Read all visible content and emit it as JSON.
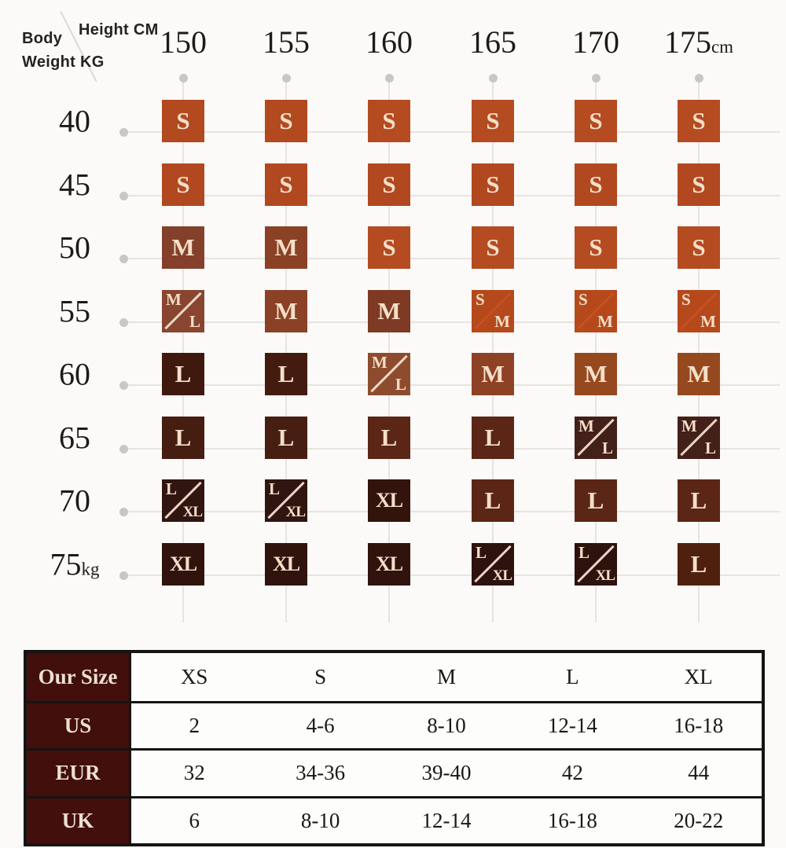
{
  "page": {
    "bg": "#fbfaf8"
  },
  "matrix": {
    "corner": {
      "left_label_line1": "Body",
      "left_label_line2": "Weight  KG",
      "top_label": "Height CM"
    },
    "col_headers": [
      {
        "text": "150",
        "suffix": ""
      },
      {
        "text": "155",
        "suffix": ""
      },
      {
        "text": "160",
        "suffix": ""
      },
      {
        "text": "165",
        "suffix": ""
      },
      {
        "text": "170",
        "suffix": ""
      },
      {
        "text": "175",
        "suffix": "cm"
      }
    ],
    "row_headers": [
      {
        "text": "40",
        "suffix": ""
      },
      {
        "text": "45",
        "suffix": ""
      },
      {
        "text": "50",
        "suffix": ""
      },
      {
        "text": "55",
        "suffix": ""
      },
      {
        "text": "60",
        "suffix": ""
      },
      {
        "text": "65",
        "suffix": ""
      },
      {
        "text": "70",
        "suffix": ""
      },
      {
        "text": "75",
        "suffix": "kg"
      }
    ],
    "grid_line_color": "#e7e4e0",
    "dot_color": "#cac6c2",
    "cells": [
      [
        {
          "label": "S",
          "bg": "#b2491f"
        },
        {
          "label": "S",
          "bg": "#b2491f"
        },
        {
          "label": "S",
          "bg": "#b54b20"
        },
        {
          "label": "S",
          "bg": "#b54b20"
        },
        {
          "label": "S",
          "bg": "#b54b20"
        },
        {
          "label": "S",
          "bg": "#b54b20"
        }
      ],
      [
        {
          "label": "S",
          "bg": "#b1481f"
        },
        {
          "label": "S",
          "bg": "#b1481f"
        },
        {
          "label": "S",
          "bg": "#b1481f"
        },
        {
          "label": "S",
          "bg": "#b1481f"
        },
        {
          "label": "S",
          "bg": "#b1481f"
        },
        {
          "label": "S",
          "bg": "#b1481f"
        }
      ],
      [
        {
          "label": "M",
          "bg": "#84402a"
        },
        {
          "label": "M",
          "bg": "#8a4126"
        },
        {
          "label": "S",
          "bg": "#b54b20"
        },
        {
          "label": "S",
          "bg": "#b54b20"
        },
        {
          "label": "S",
          "bg": "#b54b20"
        },
        {
          "label": "S",
          "bg": "#b54b20"
        }
      ],
      [
        {
          "split": true,
          "top": "M",
          "bottom": "L",
          "bg": "#8a4530",
          "slash": "#eddbc8"
        },
        {
          "label": "M",
          "bg": "#8a4126"
        },
        {
          "label": "M",
          "bg": "#7e3a24"
        },
        {
          "split": true,
          "top": "S",
          "bottom": "M",
          "bg": "#b5491c",
          "slash": "#c84f24"
        },
        {
          "split": true,
          "top": "S",
          "bottom": "M",
          "bg": "#b5491c",
          "slash": "#c84f24"
        },
        {
          "split": true,
          "top": "S",
          "bottom": "M",
          "bg": "#b5491c",
          "slash": "#c84f24"
        }
      ],
      [
        {
          "label": "L",
          "bg": "#40190e"
        },
        {
          "label": "L",
          "bg": "#431c0f"
        },
        {
          "split": true,
          "top": "M",
          "bottom": "L",
          "bg": "#8e4c2e",
          "slash": "#eddbc8"
        },
        {
          "label": "M",
          "bg": "#8e4225"
        },
        {
          "label": "M",
          "bg": "#96491f"
        },
        {
          "label": "M",
          "bg": "#96491f"
        }
      ],
      [
        {
          "label": "L",
          "bg": "#451d11"
        },
        {
          "label": "L",
          "bg": "#471e12"
        },
        {
          "label": "L",
          "bg": "#5b2615"
        },
        {
          "label": "L",
          "bg": "#5b2615"
        },
        {
          "split": true,
          "top": "M",
          "bottom": "L",
          "bg": "#44201a",
          "slash": "#e8d6c4"
        },
        {
          "split": true,
          "top": "M",
          "bottom": "L",
          "bg": "#44201a",
          "slash": "#e8d6c4"
        }
      ],
      [
        {
          "split": true,
          "top": "L",
          "bottom": "XL",
          "bg": "#311510",
          "slash": "#e8d6c4"
        },
        {
          "split": true,
          "top": "L",
          "bottom": "XL",
          "bg": "#311510",
          "slash": "#e8d6c4"
        },
        {
          "label": "XL",
          "bg": "#32140d"
        },
        {
          "label": "L",
          "bg": "#5b2615"
        },
        {
          "label": "L",
          "bg": "#5b2615"
        },
        {
          "label": "L",
          "bg": "#5b2615"
        }
      ],
      [
        {
          "label": "XL",
          "bg": "#2f130c"
        },
        {
          "label": "XL",
          "bg": "#2f130c"
        },
        {
          "label": "XL",
          "bg": "#2f130c"
        },
        {
          "split": true,
          "top": "L",
          "bottom": "XL",
          "bg": "#2d120d",
          "slash": "#e8d6c4"
        },
        {
          "split": true,
          "top": "L",
          "bottom": "XL",
          "bg": "#2d120d",
          "slash": "#e8d6c4"
        },
        {
          "label": "L",
          "bg": "#4f200e"
        }
      ]
    ]
  },
  "conversion_table": {
    "label_bg": "#420f0d",
    "label_color": "#ecdfd3",
    "border_color": "#161413",
    "header": [
      "Our Size",
      "XS",
      "S",
      "M",
      "L",
      "XL"
    ],
    "rows": [
      [
        "US",
        "2",
        "4-6",
        "8-10",
        "12-14",
        "16-18"
      ],
      [
        "EUR",
        "32",
        "34-36",
        "39-40",
        "42",
        "44"
      ],
      [
        "UK",
        "6",
        "8-10",
        "12-14",
        "16-18",
        "20-22"
      ]
    ]
  },
  "chart_data": [
    {
      "type": "heatmap",
      "title": "Recommended size by height and weight",
      "xlabel": "Height CM",
      "ylabel": "Body Weight KG",
      "x_ticks": [
        "150",
        "155",
        "160",
        "165",
        "170",
        "175cm"
      ],
      "y_ticks": [
        "40",
        "45",
        "50",
        "55",
        "60",
        "65",
        "70",
        "75kg"
      ],
      "grid": true,
      "legend_position": "none",
      "cells": [
        [
          "S",
          "S",
          "S",
          "S",
          "S",
          "S"
        ],
        [
          "S",
          "S",
          "S",
          "S",
          "S",
          "S"
        ],
        [
          "M",
          "M",
          "S",
          "S",
          "S",
          "S"
        ],
        [
          "M/L",
          "M",
          "M",
          "S/M",
          "S/M",
          "S/M"
        ],
        [
          "L",
          "L",
          "M/L",
          "M",
          "M",
          "M"
        ],
        [
          "L",
          "L",
          "L",
          "L",
          "M/L",
          "M/L"
        ],
        [
          "L/XL",
          "L/XL",
          "XL",
          "L",
          "L",
          "L"
        ],
        [
          "XL",
          "XL",
          "XL",
          "L/XL",
          "L/XL",
          "L"
        ]
      ],
      "value_colors": {
        "S": "#b2491f",
        "S/M": "#b5491c",
        "M": "#8a4126",
        "M/L": "#8e4c2e",
        "L": "#4a1e10",
        "L/XL": "#311510",
        "XL": "#2f130c"
      }
    },
    {
      "type": "table",
      "title": "Size conversion",
      "headers": [
        "Our Size",
        "XS",
        "S",
        "M",
        "L",
        "XL"
      ],
      "rows": [
        [
          "US",
          "2",
          "4-6",
          "8-10",
          "12-14",
          "16-18"
        ],
        [
          "EUR",
          "32",
          "34-36",
          "39-40",
          "42",
          "44"
        ],
        [
          "UK",
          "6",
          "8-10",
          "12-14",
          "16-18",
          "20-22"
        ]
      ]
    }
  ]
}
